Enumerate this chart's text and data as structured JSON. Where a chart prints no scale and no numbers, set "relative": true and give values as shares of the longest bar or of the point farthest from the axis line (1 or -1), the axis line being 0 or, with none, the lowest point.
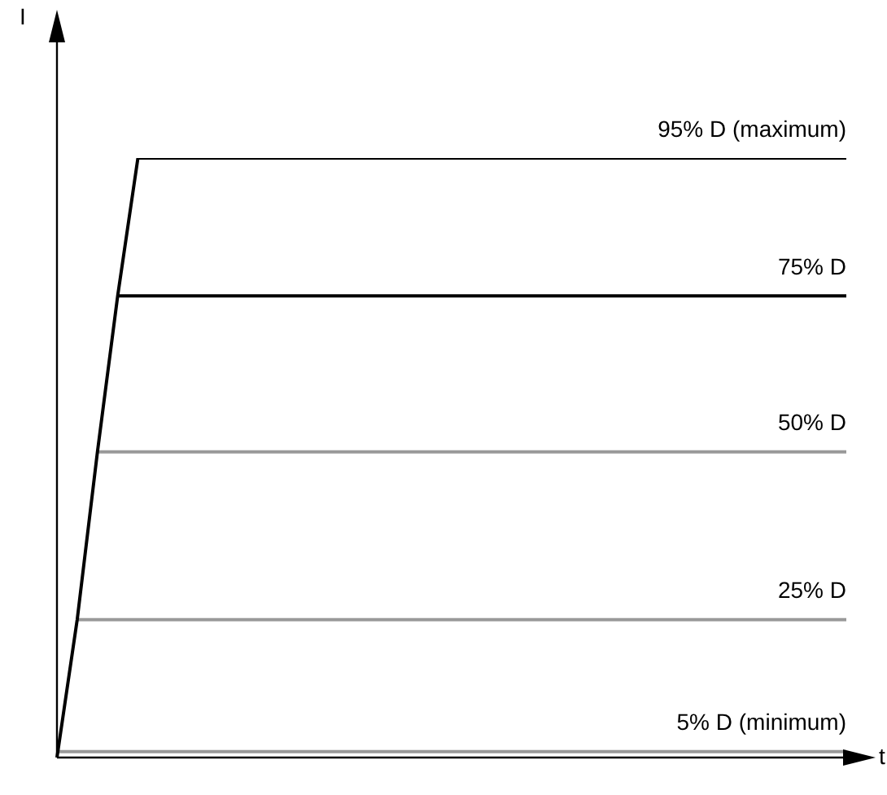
{
  "chart_data": {
    "type": "line",
    "relative": true,
    "xlabel": "t",
    "annotations": [
      "I"
    ],
    "legend": false,
    "marker": "none",
    "line_style": "solid",
    "categories": [
      null,
      null,
      null,
      null,
      null,
      null,
      null,
      null,
      null,
      null,
      null,
      null,
      null,
      null,
      null,
      null,
      null,
      null,
      null,
      null,
      null,
      null,
      null,
      null,
      null,
      null,
      null,
      null,
      null,
      null,
      null,
      null,
      null,
      null,
      null,
      null,
      null,
      null,
      null,
      null
    ],
    "series": [
      {
        "color": "#000000",
        "values": [
          0,
          0.23,
          0.51,
          0.77,
          1,
          null,
          null,
          null,
          null,
          null,
          null,
          null,
          null,
          null,
          null,
          null,
          null,
          null,
          null,
          null,
          null,
          null,
          null,
          null,
          null,
          null,
          null,
          null,
          null,
          null,
          null,
          null,
          null,
          null,
          null,
          null,
          null,
          null,
          null,
          null
        ]
      },
      {
        "name": "95% D (maximum)",
        "color": "#000000",
        "values": [
          null,
          null,
          null,
          null,
          1,
          1,
          1,
          1,
          1,
          1,
          1,
          1,
          1,
          1,
          1,
          1,
          1,
          1,
          1,
          1,
          1,
          1,
          1,
          1,
          1,
          1,
          1,
          1,
          1,
          1,
          1,
          1,
          1,
          1,
          1,
          1,
          1,
          1,
          1,
          1
        ]
      },
      {
        "name": "75% D",
        "color": "#000000",
        "values": [
          null,
          null,
          null,
          0.77,
          0.77,
          0.77,
          0.77,
          0.77,
          0.77,
          0.77,
          0.77,
          0.77,
          0.77,
          0.77,
          0.77,
          0.77,
          0.77,
          0.77,
          0.77,
          0.77,
          0.77,
          0.77,
          0.77,
          0.77,
          0.77,
          0.77,
          0.77,
          0.77,
          0.77,
          0.77,
          0.77,
          0.77,
          0.77,
          0.77,
          0.77,
          0.77,
          0.77,
          0.77,
          0.77,
          0.77
        ]
      },
      {
        "name": "50% D",
        "color": "#999999",
        "values": [
          null,
          null,
          0.51,
          0.51,
          0.51,
          0.51,
          0.51,
          0.51,
          0.51,
          0.51,
          0.51,
          0.51,
          0.51,
          0.51,
          0.51,
          0.51,
          0.51,
          0.51,
          0.51,
          0.51,
          0.51,
          0.51,
          0.51,
          0.51,
          0.51,
          0.51,
          0.51,
          0.51,
          0.51,
          0.51,
          0.51,
          0.51,
          0.51,
          0.51,
          0.51,
          0.51,
          0.51,
          0.51,
          0.51,
          0.51
        ]
      },
      {
        "name": "25% D",
        "color": "#999999",
        "values": [
          null,
          0.23,
          0.23,
          0.23,
          0.23,
          0.23,
          0.23,
          0.23,
          0.23,
          0.23,
          0.23,
          0.23,
          0.23,
          0.23,
          0.23,
          0.23,
          0.23,
          0.23,
          0.23,
          0.23,
          0.23,
          0.23,
          0.23,
          0.23,
          0.23,
          0.23,
          0.23,
          0.23,
          0.23,
          0.23,
          0.23,
          0.23,
          0.23,
          0.23,
          0.23,
          0.23,
          0.23,
          0.23,
          0.23,
          0.23
        ]
      },
      {
        "name": "5% D (minimum)",
        "color": "#999999",
        "values": [
          0.01,
          0.01,
          0.01,
          0.01,
          0.01,
          0.01,
          0.01,
          0.01,
          0.01,
          0.01,
          0.01,
          0.01,
          0.01,
          0.01,
          0.01,
          0.01,
          0.01,
          0.01,
          0.01,
          0.01,
          0.01,
          0.01,
          0.01,
          0.01,
          0.01,
          0.01,
          0.01,
          0.01,
          0.01,
          0.01,
          0.01,
          0.01,
          0.01,
          0.01,
          0.01,
          0.01,
          0.01,
          0.01,
          0.01,
          0.01
        ]
      }
    ]
  }
}
